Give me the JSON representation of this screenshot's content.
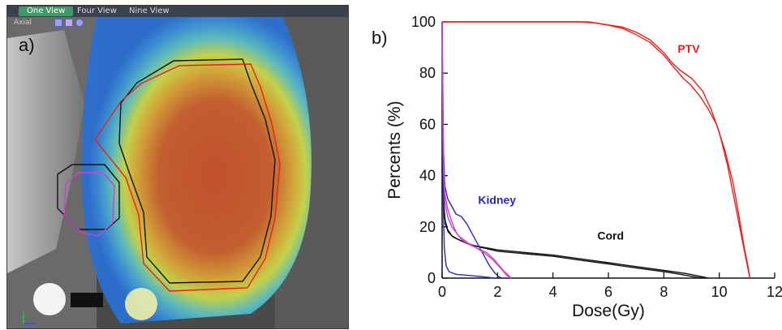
{
  "viewer": {
    "tabs": [
      "One View",
      "Four View",
      "Nine View"
    ],
    "view_label": "Axial",
    "panel_label": "a)",
    "icons": [
      "window-level-icon",
      "color-icon",
      "pan-icon"
    ],
    "colors": {
      "ptv_contour": "#e8201a",
      "cord_contour": "#111111",
      "kidney_contour": "#d040d0"
    }
  },
  "chart_data": {
    "type": "line",
    "panel_label": "b)",
    "title": "",
    "xlabel": "Dose(Gy)",
    "ylabel": "Percents (%)",
    "xlim": [
      0,
      12
    ],
    "ylim": [
      0,
      100
    ],
    "xticks": [
      "0",
      "2",
      "4",
      "6",
      "8",
      "10",
      "12"
    ],
    "yticks": [
      "0",
      "20",
      "40",
      "60",
      "80",
      "100"
    ],
    "grid": false,
    "legend": "none",
    "annotations": [
      {
        "text": "PTV",
        "x": 8.5,
        "y": 88,
        "color": "#e8201a"
      },
      {
        "text": "Kidney",
        "x": 1.3,
        "y": 29,
        "color": "#2a2ab8"
      },
      {
        "text": "Cord",
        "x": 5.6,
        "y": 15,
        "color": "#111111"
      }
    ],
    "series": [
      {
        "color": "#e8201a",
        "x": [
          0,
          5.0,
          5.6,
          6.0,
          6.5,
          7.0,
          7.5,
          8.0,
          8.3,
          8.6,
          9.0,
          9.4,
          9.7,
          10.0,
          10.3,
          10.5,
          10.7,
          10.9,
          11.05,
          11.1
        ],
        "y": [
          100,
          100,
          99.5,
          98.8,
          98,
          96,
          93,
          88,
          84,
          81,
          78,
          73,
          66,
          57,
          44,
          33,
          22,
          11,
          3,
          0
        ]
      },
      {
        "color": "#e8201a",
        "x": [
          0,
          5.3,
          6.0,
          6.5,
          7.0,
          7.5,
          8.0,
          8.3,
          8.7,
          9.0,
          9.3,
          9.6,
          9.9,
          10.2,
          10.5,
          10.7,
          10.9,
          11.05,
          11.1
        ],
        "y": [
          100,
          100,
          98.7,
          97.5,
          95,
          92,
          87,
          83,
          78,
          75,
          71,
          66,
          60,
          50,
          37,
          25,
          12,
          4,
          0
        ]
      },
      {
        "color": "#111111",
        "x": [
          0,
          0.03,
          0.06,
          0.1,
          0.2,
          0.35,
          0.6,
          1.0,
          2.0,
          3.0,
          4.0,
          5.0,
          6.0,
          7.0,
          8.0,
          8.8,
          9.4,
          9.6
        ],
        "y": [
          47,
          40,
          30,
          23,
          19,
          16.5,
          15,
          13,
          11,
          10,
          9,
          7.5,
          6,
          4.5,
          3,
          1.8,
          0.5,
          0
        ]
      },
      {
        "color": "#111111",
        "x": [
          0,
          0.03,
          0.07,
          0.12,
          0.22,
          0.4,
          0.7,
          1.2,
          2.0,
          3.0,
          4.0,
          5.0,
          6.0,
          7.0,
          8.0,
          8.6,
          9.2,
          9.5
        ],
        "y": [
          43,
          36,
          27,
          21,
          18,
          16,
          14.5,
          12.5,
          10.5,
          9.5,
          8.5,
          7,
          5.5,
          4,
          2.5,
          1.5,
          0.3,
          0
        ]
      },
      {
        "color": "#2a2ab8",
        "x": [
          0,
          0.02,
          0.05,
          0.1,
          0.2,
          0.35,
          0.5,
          0.7,
          0.9,
          1.1,
          1.3,
          1.5,
          1.7,
          1.9,
          2.05,
          2.15
        ],
        "y": [
          100,
          80,
          50,
          36,
          31,
          28,
          25,
          24,
          21,
          17,
          13,
          9,
          5,
          2,
          0.5,
          0
        ]
      },
      {
        "color": "#2a2ab8",
        "x": [
          0,
          0.02,
          0.04,
          0.08,
          0.14,
          0.25,
          0.5,
          1.0,
          1.5,
          1.9
        ],
        "y": [
          100,
          60,
          30,
          12,
          5,
          2.5,
          1.5,
          1,
          0.5,
          0
        ]
      },
      {
        "color": "#d040d0",
        "x": [
          0,
          0.02,
          0.05,
          0.1,
          0.2,
          0.35,
          0.5,
          0.7,
          1.0,
          1.3,
          1.6,
          1.9,
          2.2,
          2.4,
          2.5
        ],
        "y": [
          100,
          70,
          45,
          33,
          27,
          22,
          18,
          15,
          13,
          11.5,
          10,
          7,
          3,
          1,
          0
        ]
      },
      {
        "color": "#d040d0",
        "x": [
          0,
          0.02,
          0.05,
          0.1,
          0.2,
          0.35,
          0.6,
          0.9,
          1.2,
          1.5,
          1.8,
          2.1,
          2.3,
          2.45
        ],
        "y": [
          98,
          65,
          42,
          30,
          24,
          20,
          16.5,
          14,
          12,
          10,
          7.5,
          4,
          1.5,
          0
        ]
      }
    ]
  }
}
